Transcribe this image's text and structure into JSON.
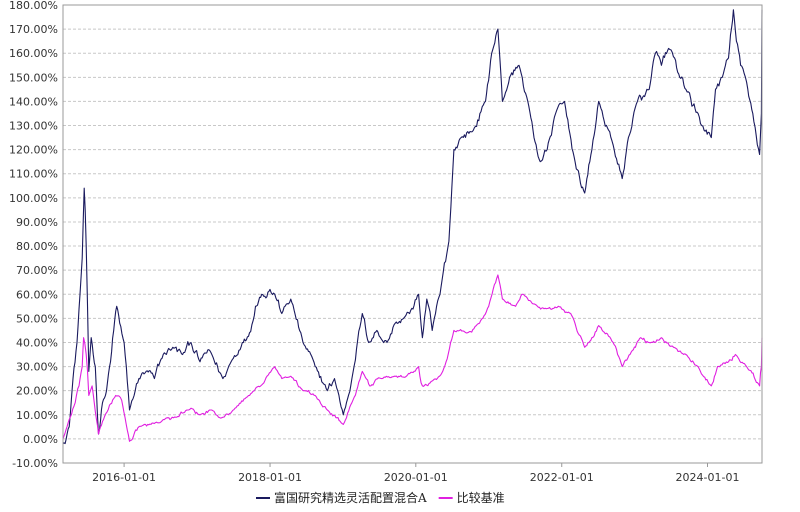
{
  "chart_data": {
    "type": "line",
    "title": "",
    "xlabel": "",
    "ylabel": "",
    "x_range": [
      "2015-03-01",
      "2024-09-30"
    ],
    "x_ticks": [
      "2016-01-01",
      "2018-01-01",
      "2020-01-01",
      "2022-01-01",
      "2024-01-01"
    ],
    "ylim": [
      -10,
      180
    ],
    "y_ticks": [
      "-10.00%",
      "0.00%",
      "10.00%",
      "20.00%",
      "30.00%",
      "40.00%",
      "50.00%",
      "60.00%",
      "70.00%",
      "80.00%",
      "90.00%",
      "100.00%",
      "110.00%",
      "120.00%",
      "130.00%",
      "140.00%",
      "150.00%",
      "160.00%",
      "170.00%",
      "180.00%"
    ],
    "y_unit": "%",
    "grid": true,
    "legend_position": "bottom",
    "series": [
      {
        "name": "富国研究精选灵活配置混合A",
        "color": "#1a1a5e",
        "points": [
          [
            "2015-03-01",
            -2
          ],
          [
            "2015-04-01",
            5
          ],
          [
            "2015-04-20",
            25
          ],
          [
            "2015-05-10",
            40
          ],
          [
            "2015-05-25",
            60
          ],
          [
            "2015-06-05",
            75
          ],
          [
            "2015-06-15",
            104
          ],
          [
            "2015-06-25",
            80
          ],
          [
            "2015-07-08",
            28
          ],
          [
            "2015-07-20",
            42
          ],
          [
            "2015-08-10",
            30
          ],
          [
            "2015-08-26",
            2
          ],
          [
            "2015-09-15",
            15
          ],
          [
            "2015-10-05",
            20
          ],
          [
            "2015-10-25",
            32
          ],
          [
            "2015-11-10",
            45
          ],
          [
            "2015-11-25",
            55
          ],
          [
            "2015-12-10",
            48
          ],
          [
            "2016-01-01",
            40
          ],
          [
            "2016-01-28",
            12
          ],
          [
            "2016-02-20",
            18
          ],
          [
            "2016-03-15",
            25
          ],
          [
            "2016-04-20",
            28
          ],
          [
            "2016-06-01",
            25
          ],
          [
            "2016-07-15",
            35
          ],
          [
            "2016-09-01",
            38
          ],
          [
            "2016-10-20",
            35
          ],
          [
            "2016-12-01",
            40
          ],
          [
            "2017-01-15",
            32
          ],
          [
            "2017-03-01",
            37
          ],
          [
            "2017-05-10",
            25
          ],
          [
            "2017-06-20",
            32
          ],
          [
            "2017-08-15",
            40
          ],
          [
            "2017-09-20",
            44
          ],
          [
            "2017-10-20",
            55
          ],
          [
            "2017-11-20",
            60
          ],
          [
            "2018-01-01",
            62
          ],
          [
            "2018-01-25",
            60
          ],
          [
            "2018-03-01",
            52
          ],
          [
            "2018-04-15",
            58
          ],
          [
            "2018-06-15",
            40
          ],
          [
            "2018-08-15",
            30
          ],
          [
            "2018-10-15",
            20
          ],
          [
            "2018-11-20",
            25
          ],
          [
            "2019-01-03",
            10
          ],
          [
            "2019-02-15",
            25
          ],
          [
            "2019-04-08",
            52
          ],
          [
            "2019-05-10",
            40
          ],
          [
            "2019-06-20",
            45
          ],
          [
            "2019-08-10",
            40
          ],
          [
            "2019-09-20",
            48
          ],
          [
            "2019-11-01",
            50
          ],
          [
            "2019-12-01",
            52
          ],
          [
            "2020-01-15",
            60
          ],
          [
            "2020-02-03",
            42
          ],
          [
            "2020-02-25",
            58
          ],
          [
            "2020-03-23",
            45
          ],
          [
            "2020-05-01",
            60
          ],
          [
            "2020-06-15",
            82
          ],
          [
            "2020-07-10",
            120
          ],
          [
            "2020-08-15",
            125
          ],
          [
            "2020-10-15",
            128
          ],
          [
            "2020-12-15",
            140
          ],
          [
            "2021-01-15",
            160
          ],
          [
            "2021-02-15",
            170
          ],
          [
            "2021-03-10",
            140
          ],
          [
            "2021-04-15",
            150
          ],
          [
            "2021-06-01",
            155
          ],
          [
            "2021-07-15",
            140
          ],
          [
            "2021-08-15",
            125
          ],
          [
            "2021-09-15",
            115
          ],
          [
            "2021-10-20",
            120
          ],
          [
            "2021-12-01",
            135
          ],
          [
            "2022-01-15",
            140
          ],
          [
            "2022-03-15",
            112
          ],
          [
            "2022-04-26",
            102
          ],
          [
            "2022-06-01",
            120
          ],
          [
            "2022-07-05",
            140
          ],
          [
            "2022-09-15",
            122
          ],
          [
            "2022-10-31",
            108
          ],
          [
            "2022-12-01",
            125
          ],
          [
            "2023-01-15",
            140
          ],
          [
            "2023-02-20",
            142
          ],
          [
            "2023-03-15",
            145
          ],
          [
            "2023-04-15",
            160
          ],
          [
            "2023-05-15",
            155
          ],
          [
            "2023-06-20",
            162
          ],
          [
            "2023-07-20",
            158
          ],
          [
            "2023-08-15",
            150
          ],
          [
            "2023-09-15",
            145
          ],
          [
            "2023-10-15",
            138
          ],
          [
            "2023-11-15",
            135
          ],
          [
            "2023-12-15",
            128
          ],
          [
            "2024-01-20",
            125
          ],
          [
            "2024-02-10",
            145
          ],
          [
            "2024-03-15",
            150
          ],
          [
            "2024-04-15",
            158
          ],
          [
            "2024-05-10",
            178
          ],
          [
            "2024-05-25",
            165
          ],
          [
            "2024-06-15",
            155
          ],
          [
            "2024-07-15",
            148
          ],
          [
            "2024-08-15",
            135
          ],
          [
            "2024-09-18",
            118
          ],
          [
            "2024-09-27",
            135
          ],
          [
            "2024-09-30",
            178
          ]
        ]
      },
      {
        "name": "比较基准",
        "color": "#e020e0",
        "points": [
          [
            "2015-03-01",
            0
          ],
          [
            "2015-04-01",
            8
          ],
          [
            "2015-05-01",
            15
          ],
          [
            "2015-05-20",
            22
          ],
          [
            "2015-06-05",
            30
          ],
          [
            "2015-06-12",
            42
          ],
          [
            "2015-06-25",
            35
          ],
          [
            "2015-07-08",
            18
          ],
          [
            "2015-07-25",
            22
          ],
          [
            "2015-08-26",
            2
          ],
          [
            "2015-09-20",
            8
          ],
          [
            "2015-10-20",
            14
          ],
          [
            "2015-11-20",
            18
          ],
          [
            "2015-12-20",
            16
          ],
          [
            "2016-01-28",
            -1
          ],
          [
            "2016-03-15",
            5
          ],
          [
            "2016-05-15",
            6
          ],
          [
            "2016-07-15",
            8
          ],
          [
            "2016-09-15",
            9
          ],
          [
            "2016-11-15",
            12
          ],
          [
            "2017-01-15",
            10
          ],
          [
            "2017-03-15",
            12
          ],
          [
            "2017-05-10",
            9
          ],
          [
            "2017-07-15",
            13
          ],
          [
            "2017-09-15",
            18
          ],
          [
            "2017-11-15",
            22
          ],
          [
            "2018-01-25",
            30
          ],
          [
            "2018-03-01",
            25
          ],
          [
            "2018-04-15",
            26
          ],
          [
            "2018-06-15",
            20
          ],
          [
            "2018-08-15",
            18
          ],
          [
            "2018-10-15",
            12
          ],
          [
            "2019-01-03",
            6
          ],
          [
            "2019-02-15",
            15
          ],
          [
            "2019-04-08",
            28
          ],
          [
            "2019-05-15",
            22
          ],
          [
            "2019-07-15",
            25
          ],
          [
            "2019-09-15",
            26
          ],
          [
            "2019-11-15",
            26
          ],
          [
            "2020-01-15",
            30
          ],
          [
            "2020-02-03",
            22
          ],
          [
            "2020-03-23",
            24
          ],
          [
            "2020-05-15",
            28
          ],
          [
            "2020-07-10",
            45
          ],
          [
            "2020-09-15",
            44
          ],
          [
            "2020-11-15",
            48
          ],
          [
            "2020-12-31",
            55
          ],
          [
            "2021-02-15",
            68
          ],
          [
            "2021-03-10",
            58
          ],
          [
            "2021-05-15",
            55
          ],
          [
            "2021-06-15",
            60
          ],
          [
            "2021-08-15",
            56
          ],
          [
            "2021-10-15",
            54
          ],
          [
            "2021-12-15",
            55
          ],
          [
            "2022-02-15",
            52
          ],
          [
            "2022-04-26",
            38
          ],
          [
            "2022-06-01",
            42
          ],
          [
            "2022-07-05",
            47
          ],
          [
            "2022-09-15",
            40
          ],
          [
            "2022-10-31",
            30
          ],
          [
            "2022-12-15",
            36
          ],
          [
            "2023-01-31",
            42
          ],
          [
            "2023-03-15",
            40
          ],
          [
            "2023-05-15",
            42
          ],
          [
            "2023-07-15",
            38
          ],
          [
            "2023-09-15",
            35
          ],
          [
            "2023-11-15",
            30
          ],
          [
            "2024-01-20",
            22
          ],
          [
            "2024-02-20",
            30
          ],
          [
            "2024-04-15",
            32
          ],
          [
            "2024-05-20",
            35
          ],
          [
            "2024-07-15",
            30
          ],
          [
            "2024-09-18",
            22
          ],
          [
            "2024-09-27",
            30
          ],
          [
            "2024-09-30",
            42
          ]
        ]
      }
    ]
  }
}
